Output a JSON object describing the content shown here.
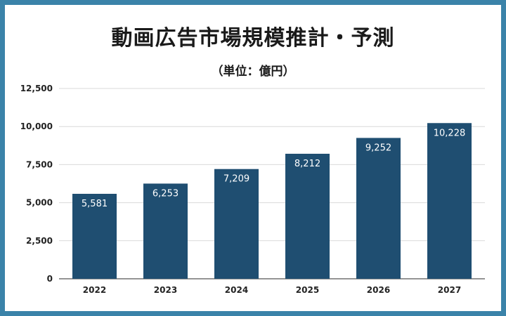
{
  "title": "動画広告市場規模推計・予測",
  "subtitle": "（単位：億円）",
  "colors": {
    "frame": "#3b83a9",
    "bar": "#1f4e71",
    "grid": "#d9d9d9",
    "axis": "#555555"
  },
  "chart_data": {
    "type": "bar",
    "title": "動画広告市場規模推計・予測",
    "subtitle": "（単位：億円）",
    "categories": [
      "2022",
      "2023",
      "2024",
      "2025",
      "2026",
      "2027"
    ],
    "values": [
      5581,
      6253,
      7209,
      8212,
      9252,
      10228
    ],
    "value_labels": [
      "5,581",
      "6,253",
      "7,209",
      "8,212",
      "9,252",
      "10,228"
    ],
    "ylim": [
      0,
      12500
    ],
    "yticks": [
      0,
      2500,
      5000,
      7500,
      10000,
      12500
    ],
    "ytick_labels": [
      "0",
      "2,500",
      "5,000",
      "7,500",
      "10,000",
      "12,500"
    ],
    "grid": true,
    "legend": "none"
  }
}
